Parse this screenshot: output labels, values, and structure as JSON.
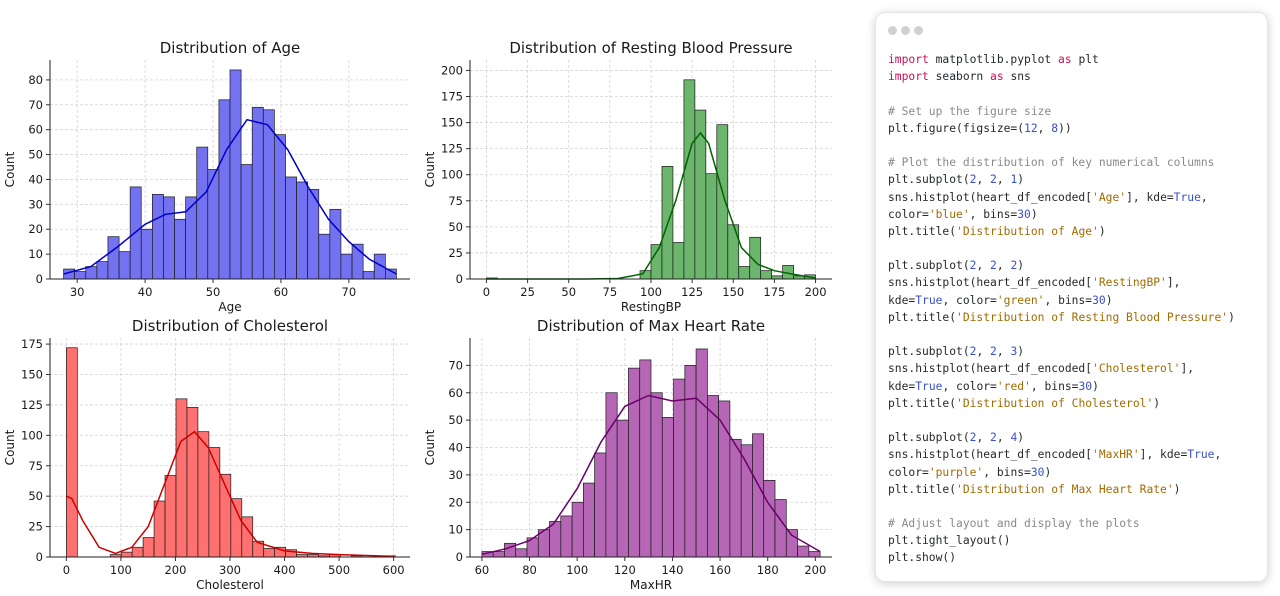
{
  "chart_data": [
    {
      "type": "histogram",
      "title": "Distribution of Age",
      "xlabel": "Age",
      "ylabel": "Count",
      "color": "#7373f2",
      "edgecolor": "#1a1a1a",
      "line_color": "#0000c8",
      "bins": [
        28,
        29.63,
        31.27,
        32.9,
        34.53,
        36.17,
        37.8,
        39.43,
        41.07,
        42.7,
        44.33,
        45.97,
        47.6,
        49.23,
        50.87,
        52.5,
        54.13,
        55.77,
        57.4,
        59.03,
        60.67,
        62.3,
        63.93,
        65.57,
        67.2,
        68.83,
        70.47,
        72.1,
        73.73,
        75.37,
        77
      ],
      "values": [
        4,
        3,
        5,
        7,
        17,
        11,
        37,
        20,
        34,
        33,
        24,
        33,
        53,
        44,
        72,
        84,
        46,
        69,
        68,
        58,
        41,
        39,
        36,
        18,
        28,
        10,
        14,
        3,
        10,
        4
      ],
      "kde": {
        "x": [
          28,
          32,
          36,
          40,
          43,
          46,
          49,
          52,
          55,
          58,
          61,
          64,
          67,
          70,
          73,
          77
        ],
        "values": [
          2,
          5,
          13,
          22,
          26,
          27,
          35,
          52,
          64,
          62,
          52,
          37,
          24,
          15,
          8,
          2
        ]
      },
      "xlim": [
        26,
        79
      ],
      "xticks": [
        30,
        40,
        50,
        60,
        70
      ],
      "ylim": [
        0,
        88
      ],
      "yticks": [
        0,
        10,
        20,
        30,
        40,
        50,
        60,
        70,
        80
      ],
      "grid": true
    },
    {
      "type": "histogram",
      "title": "Distribution of Resting Blood Pressure",
      "xlabel": "RestingBP",
      "ylabel": "Count",
      "color": "#6cb56c",
      "edgecolor": "#1a1a1a",
      "line_color": "#006400",
      "bins": [
        0,
        6.67,
        13.33,
        20,
        26.67,
        33.33,
        40,
        46.67,
        53.33,
        60,
        66.67,
        73.33,
        80,
        86.67,
        93.33,
        100,
        106.67,
        113.33,
        120,
        126.67,
        133.33,
        140,
        146.67,
        153.33,
        160,
        166.67,
        173.33,
        180,
        186.67,
        193.33,
        200
      ],
      "values": [
        1,
        0,
        0,
        0,
        0,
        0,
        0,
        0,
        0,
        0,
        0,
        0,
        0,
        0,
        8,
        33,
        108,
        35,
        191,
        162,
        101,
        148,
        52,
        12,
        40,
        8,
        3,
        13,
        3,
        4
      ],
      "kde": {
        "x": [
          0,
          60,
          80,
          95,
          105,
          115,
          125,
          130,
          135,
          145,
          155,
          165,
          175,
          185,
          200
        ],
        "values": [
          0,
          0,
          0.5,
          5,
          30,
          75,
          130,
          140,
          130,
          75,
          30,
          14,
          8,
          5,
          1
        ]
      },
      "xlim": [
        -10,
        210
      ],
      "xticks": [
        0,
        25,
        50,
        75,
        100,
        125,
        150,
        175,
        200
      ],
      "ylim": [
        0,
        210
      ],
      "yticks": [
        0,
        25,
        50,
        75,
        100,
        125,
        150,
        175,
        200
      ],
      "grid": true
    },
    {
      "type": "histogram",
      "title": "Distribution of Cholesterol",
      "xlabel": "Cholesterol",
      "ylabel": "Count",
      "color": "#ff7070",
      "edgecolor": "#1a1a1a",
      "line_color": "#cc0000",
      "bins": [
        0,
        20.1,
        40.2,
        60.3,
        80.4,
        100.5,
        120.6,
        140.7,
        160.8,
        180.9,
        201,
        221.1,
        241.2,
        261.3,
        281.4,
        301.5,
        321.6,
        341.7,
        361.8,
        381.9,
        402,
        422.1,
        442.2,
        462.3,
        482.4,
        502.5,
        522.6,
        542.7,
        562.8,
        582.9,
        603
      ],
      "values": [
        172,
        0,
        0,
        0,
        2,
        4,
        8,
        16,
        46,
        67,
        130,
        123,
        103,
        90,
        68,
        48,
        33,
        13,
        7,
        8,
        6,
        2,
        2,
        1,
        2,
        0,
        1,
        0,
        0,
        1
      ],
      "kde": {
        "x": [
          0,
          10,
          30,
          60,
          90,
          120,
          150,
          180,
          210,
          235,
          260,
          290,
          320,
          350,
          400,
          450,
          500,
          600
        ],
        "values": [
          50,
          48,
          30,
          8,
          3,
          8,
          25,
          60,
          95,
          103,
          90,
          60,
          30,
          12,
          5,
          3,
          2,
          0.5
        ]
      },
      "xlim": [
        -30,
        630
      ],
      "xticks": [
        0,
        100,
        200,
        300,
        400,
        500,
        600
      ],
      "ylim": [
        0,
        180
      ],
      "yticks": [
        0,
        25,
        50,
        75,
        100,
        125,
        150,
        175
      ],
      "grid": true
    },
    {
      "type": "histogram",
      "title": "Distribution of Max Heart Rate",
      "xlabel": "MaxHR",
      "ylabel": "Count",
      "color": "#b567b5",
      "edgecolor": "#1a1a1a",
      "line_color": "#6a006a",
      "bins": [
        60,
        64.73,
        69.47,
        74.2,
        78.93,
        83.67,
        88.4,
        93.13,
        97.87,
        102.6,
        107.33,
        112.07,
        116.8,
        121.53,
        126.27,
        131,
        135.73,
        140.47,
        145.2,
        149.93,
        154.67,
        159.4,
        164.13,
        168.87,
        173.6,
        178.33,
        183.07,
        187.8,
        192.53,
        197.27,
        202
      ],
      "values": [
        2,
        2,
        5,
        3,
        7,
        10,
        13,
        15,
        20,
        27,
        38,
        60,
        50,
        69,
        72,
        60,
        51,
        65,
        70,
        76,
        59,
        57,
        43,
        41,
        45,
        28,
        21,
        10,
        4,
        2
      ],
      "kde": {
        "x": [
          60,
          70,
          80,
          90,
          100,
          110,
          120,
          130,
          140,
          150,
          160,
          170,
          180,
          190,
          202
        ],
        "values": [
          1,
          3,
          6,
          12,
          25,
          42,
          55,
          59,
          57,
          58,
          50,
          36,
          20,
          8,
          2
        ]
      },
      "xlim": [
        55,
        207
      ],
      "xticks": [
        60,
        80,
        100,
        120,
        140,
        160,
        180,
        200
      ],
      "ylim": [
        0,
        80
      ],
      "yticks": [
        0,
        10,
        20,
        30,
        40,
        50,
        60,
        70
      ],
      "grid": true
    }
  ],
  "code": {
    "lines": [
      [
        {
          "text": "import",
          "color": "#c8105a"
        },
        {
          "text": " matplotlib.pyplot ",
          "color": "#24292e"
        },
        {
          "text": "as",
          "color": "#c8105a"
        },
        {
          "text": " plt",
          "color": "#24292e"
        }
      ],
      [
        {
          "text": "import",
          "color": "#c8105a"
        },
        {
          "text": " seaborn ",
          "color": "#24292e"
        },
        {
          "text": "as",
          "color": "#c8105a"
        },
        {
          "text": " sns",
          "color": "#24292e"
        }
      ],
      [],
      [
        {
          "text": "# Set up the figure size",
          "color": "#8a8a8a"
        }
      ],
      [
        {
          "text": "plt.figure(figsize=(",
          "color": "#24292e"
        },
        {
          "text": "12",
          "color": "#3b4fd0"
        },
        {
          "text": ", ",
          "color": "#24292e"
        },
        {
          "text": "8",
          "color": "#3b4fd0"
        },
        {
          "text": "))",
          "color": "#24292e"
        }
      ],
      [],
      [
        {
          "text": "# Plot the distribution of key numerical columns",
          "color": "#8a8a8a"
        }
      ],
      [
        {
          "text": "plt.subplot(",
          "color": "#24292e"
        },
        {
          "text": "2",
          "color": "#3b4fd0"
        },
        {
          "text": ", ",
          "color": "#24292e"
        },
        {
          "text": "2",
          "color": "#3b4fd0"
        },
        {
          "text": ", ",
          "color": "#24292e"
        },
        {
          "text": "1",
          "color": "#3b4fd0"
        },
        {
          "text": ")",
          "color": "#24292e"
        }
      ],
      [
        {
          "text": "sns.histplot(heart_df_encoded[",
          "color": "#24292e"
        },
        {
          "text": "'Age'",
          "color": "#a36b00"
        },
        {
          "text": "], kde=",
          "color": "#24292e"
        },
        {
          "text": "True",
          "color": "#3b4fd0"
        },
        {
          "text": ",",
          "color": "#24292e"
        }
      ],
      [
        {
          "text": "color=",
          "color": "#24292e"
        },
        {
          "text": "'blue'",
          "color": "#a36b00"
        },
        {
          "text": ", bins=",
          "color": "#24292e"
        },
        {
          "text": "30",
          "color": "#3b4fd0"
        },
        {
          "text": ")",
          "color": "#24292e"
        }
      ],
      [
        {
          "text": "plt.title(",
          "color": "#24292e"
        },
        {
          "text": "'Distribution of Age'",
          "color": "#a36b00"
        },
        {
          "text": ")",
          "color": "#24292e"
        }
      ],
      [],
      [
        {
          "text": "plt.subplot(",
          "color": "#24292e"
        },
        {
          "text": "2",
          "color": "#3b4fd0"
        },
        {
          "text": ", ",
          "color": "#24292e"
        },
        {
          "text": "2",
          "color": "#3b4fd0"
        },
        {
          "text": ", ",
          "color": "#24292e"
        },
        {
          "text": "2",
          "color": "#3b4fd0"
        },
        {
          "text": ")",
          "color": "#24292e"
        }
      ],
      [
        {
          "text": "sns.histplot(heart_df_encoded[",
          "color": "#24292e"
        },
        {
          "text": "'RestingBP'",
          "color": "#a36b00"
        },
        {
          "text": "],",
          "color": "#24292e"
        }
      ],
      [
        {
          "text": "kde=",
          "color": "#24292e"
        },
        {
          "text": "True",
          "color": "#3b4fd0"
        },
        {
          "text": ", color=",
          "color": "#24292e"
        },
        {
          "text": "'green'",
          "color": "#a36b00"
        },
        {
          "text": ", bins=",
          "color": "#24292e"
        },
        {
          "text": "30",
          "color": "#3b4fd0"
        },
        {
          "text": ")",
          "color": "#24292e"
        }
      ],
      [
        {
          "text": "plt.title(",
          "color": "#24292e"
        },
        {
          "text": "'Distribution of Resting Blood Pressure'",
          "color": "#a36b00"
        },
        {
          "text": ")",
          "color": "#24292e"
        }
      ],
      [],
      [
        {
          "text": "plt.subplot(",
          "color": "#24292e"
        },
        {
          "text": "2",
          "color": "#3b4fd0"
        },
        {
          "text": ", ",
          "color": "#24292e"
        },
        {
          "text": "2",
          "color": "#3b4fd0"
        },
        {
          "text": ", ",
          "color": "#24292e"
        },
        {
          "text": "3",
          "color": "#3b4fd0"
        },
        {
          "text": ")",
          "color": "#24292e"
        }
      ],
      [
        {
          "text": "sns.histplot(heart_df_encoded[",
          "color": "#24292e"
        },
        {
          "text": "'Cholesterol'",
          "color": "#a36b00"
        },
        {
          "text": "],",
          "color": "#24292e"
        }
      ],
      [
        {
          "text": "kde=",
          "color": "#24292e"
        },
        {
          "text": "True",
          "color": "#3b4fd0"
        },
        {
          "text": ", color=",
          "color": "#24292e"
        },
        {
          "text": "'red'",
          "color": "#a36b00"
        },
        {
          "text": ", bins=",
          "color": "#24292e"
        },
        {
          "text": "30",
          "color": "#3b4fd0"
        },
        {
          "text": ")",
          "color": "#24292e"
        }
      ],
      [
        {
          "text": "plt.title(",
          "color": "#24292e"
        },
        {
          "text": "'Distribution of Cholesterol'",
          "color": "#a36b00"
        },
        {
          "text": ")",
          "color": "#24292e"
        }
      ],
      [],
      [
        {
          "text": "plt.subplot(",
          "color": "#24292e"
        },
        {
          "text": "2",
          "color": "#3b4fd0"
        },
        {
          "text": ", ",
          "color": "#24292e"
        },
        {
          "text": "2",
          "color": "#3b4fd0"
        },
        {
          "text": ", ",
          "color": "#24292e"
        },
        {
          "text": "4",
          "color": "#3b4fd0"
        },
        {
          "text": ")",
          "color": "#24292e"
        }
      ],
      [
        {
          "text": "sns.histplot(heart_df_encoded[",
          "color": "#24292e"
        },
        {
          "text": "'MaxHR'",
          "color": "#a36b00"
        },
        {
          "text": "], kde=",
          "color": "#24292e"
        },
        {
          "text": "True",
          "color": "#3b4fd0"
        },
        {
          "text": ",",
          "color": "#24292e"
        }
      ],
      [
        {
          "text": "color=",
          "color": "#24292e"
        },
        {
          "text": "'purple'",
          "color": "#a36b00"
        },
        {
          "text": ", bins=",
          "color": "#24292e"
        },
        {
          "text": "30",
          "color": "#3b4fd0"
        },
        {
          "text": ")",
          "color": "#24292e"
        }
      ],
      [
        {
          "text": "plt.title(",
          "color": "#24292e"
        },
        {
          "text": "'Distribution of Max Heart Rate'",
          "color": "#a36b00"
        },
        {
          "text": ")",
          "color": "#24292e"
        }
      ],
      [],
      [
        {
          "text": "# Adjust layout and display the plots",
          "color": "#8a8a8a"
        }
      ],
      [
        {
          "text": "plt.tight_layout()",
          "color": "#24292e"
        }
      ],
      [
        {
          "text": "plt.show()",
          "color": "#24292e"
        }
      ]
    ]
  }
}
